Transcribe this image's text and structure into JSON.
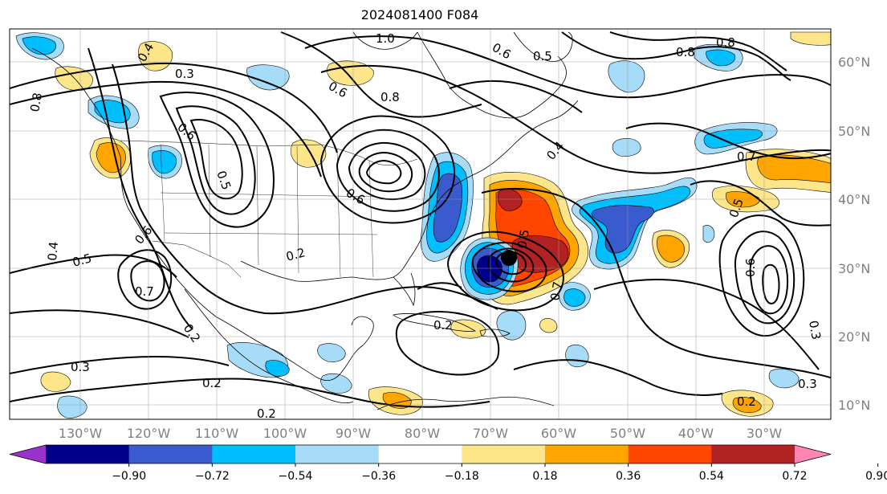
{
  "title": "2024081400 F084",
  "longitude_labels": [
    "130°W",
    "120°W",
    "110°W",
    "100°W",
    "90°W",
    "80°W",
    "70°W",
    "60°W",
    "50°W",
    "40°W",
    "30°W"
  ],
  "latitude_labels": [
    "60°N",
    "50°N",
    "40°N",
    "30°N",
    "20°N",
    "10°N"
  ],
  "colorbar": {
    "ticks": [
      "−0.90",
      "−0.72",
      "−0.54",
      "−0.36",
      "−0.18",
      "0.18",
      "0.36",
      "0.54",
      "0.72",
      "0.90"
    ],
    "colors": [
      "#9932cc",
      "#00008b",
      "#3a5bcd",
      "#00bfff",
      "#a6dcf7",
      "#ffffff",
      "#fde68a",
      "#ffa500",
      "#ff4500",
      "#b22222",
      "#ff85b4"
    ]
  },
  "contour_labels": [
    {
      "text": "0.3"
    },
    {
      "text": "0.4"
    },
    {
      "text": "0.8"
    },
    {
      "text": "0.6"
    },
    {
      "text": "0.5"
    },
    {
      "text": "1.0"
    },
    {
      "text": "0.6"
    },
    {
      "text": "0.5"
    },
    {
      "text": "0.8"
    },
    {
      "text": "0.6"
    },
    {
      "text": "0.8"
    },
    {
      "text": "0.8"
    },
    {
      "text": "0.7"
    },
    {
      "text": "0.5"
    },
    {
      "text": "0.4"
    },
    {
      "text": "0.5"
    },
    {
      "text": "0.6"
    },
    {
      "text": "0.7"
    },
    {
      "text": "0.2"
    },
    {
      "text": "0.2"
    },
    {
      "text": "0.3"
    },
    {
      "text": "0.2"
    },
    {
      "text": "0.2"
    },
    {
      "text": "0.2"
    },
    {
      "text": "0.7"
    },
    {
      "text": "0.5"
    },
    {
      "text": "0.6"
    },
    {
      "text": "0.3"
    },
    {
      "text": "0.3"
    },
    {
      "text": "0.2"
    },
    {
      "text": "0.6"
    },
    {
      "text": "0.4"
    }
  ],
  "storm_marker": "hurricane-center"
}
